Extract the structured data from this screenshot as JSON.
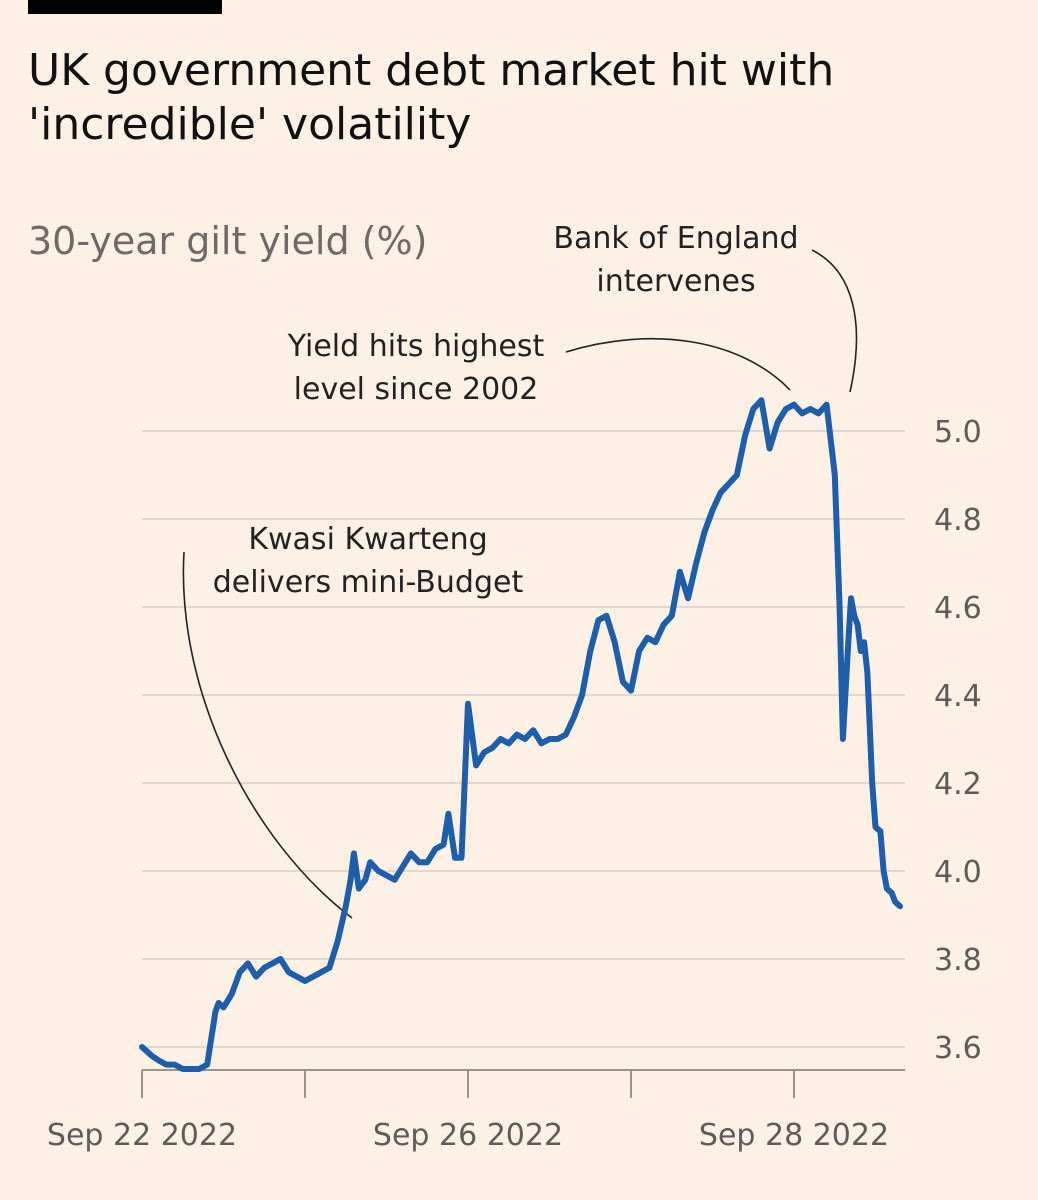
{
  "header": {
    "title_line1": "UK government debt market hit with",
    "title_line2": "'incredible' volatility"
  },
  "chart_data": {
    "type": "line",
    "title": "UK government debt market hit with 'incredible' volatility",
    "subtitle": "30-year gilt yield (%)",
    "xlabel": "",
    "ylabel": "30-year gilt yield (%)",
    "xlim": [
      0,
      4.7
    ],
    "ylim": [
      3.52,
      5.12
    ],
    "x_ticks": [
      0,
      1,
      2,
      3,
      4
    ],
    "x_tick_labels": [
      {
        "x": 0,
        "label": "Sep 22 2022"
      },
      {
        "x": 2,
        "label": "Sep 26 2022"
      },
      {
        "x": 4,
        "label": "Sep 28 2022"
      }
    ],
    "y_ticks": [
      3.6,
      3.8,
      4.0,
      4.2,
      4.4,
      4.6,
      4.8,
      5.0
    ],
    "y_tick_labels": [
      "3.6",
      "3.8",
      "4.0",
      "4.2",
      "4.4",
      "4.6",
      "4.8",
      "5.0"
    ],
    "colors": {
      "line": "#1f5ea8",
      "grid": "#e3d8cf",
      "annotation": "#222222"
    },
    "series": [
      {
        "name": "30-year gilt yield",
        "x": [
          0,
          0.03,
          0.06,
          0.1,
          0.15,
          0.2,
          0.25,
          0.3,
          0.35,
          0.4,
          0.45,
          0.47,
          0.5,
          0.55,
          0.6,
          0.65,
          0.7,
          0.75,
          0.8,
          0.85,
          0.9,
          0.95,
          1.0,
          1.05,
          1.1,
          1.15,
          1.2,
          1.25,
          1.28,
          1.3,
          1.33,
          1.37,
          1.4,
          1.45,
          1.5,
          1.55,
          1.6,
          1.65,
          1.7,
          1.75,
          1.8,
          1.85,
          1.88,
          1.92,
          1.96,
          2.0,
          2.05,
          2.1,
          2.15,
          2.2,
          2.25,
          2.3,
          2.35,
          2.4,
          2.45,
          2.5,
          2.55,
          2.6,
          2.65,
          2.7,
          2.75,
          2.8,
          2.85,
          2.9,
          2.95,
          3.0,
          3.05,
          3.1,
          3.15,
          3.2,
          3.25,
          3.3,
          3.35,
          3.4,
          3.45,
          3.5,
          3.55,
          3.6,
          3.65,
          3.7,
          3.75,
          3.8,
          3.85,
          3.9,
          3.95,
          4.0,
          4.05,
          4.1,
          4.15,
          4.2,
          4.25,
          4.28,
          4.3,
          4.33,
          4.35,
          4.37,
          4.39,
          4.41,
          4.43,
          4.45,
          4.48,
          4.5,
          4.53,
          4.55,
          4.57,
          4.6,
          4.62,
          4.65
        ],
        "values": [
          3.6,
          3.59,
          3.58,
          3.57,
          3.56,
          3.56,
          3.55,
          3.55,
          3.55,
          3.56,
          3.68,
          3.7,
          3.69,
          3.72,
          3.77,
          3.79,
          3.76,
          3.78,
          3.79,
          3.8,
          3.77,
          3.76,
          3.75,
          3.76,
          3.77,
          3.78,
          3.84,
          3.92,
          3.98,
          4.04,
          3.96,
          3.98,
          4.02,
          4.0,
          3.99,
          3.98,
          4.01,
          4.04,
          4.02,
          4.02,
          4.05,
          4.06,
          4.13,
          4.03,
          4.03,
          4.38,
          4.24,
          4.27,
          4.28,
          4.3,
          4.29,
          4.31,
          4.3,
          4.32,
          4.29,
          4.3,
          4.3,
          4.31,
          4.35,
          4.4,
          4.5,
          4.57,
          4.58,
          4.52,
          4.43,
          4.41,
          4.5,
          4.53,
          4.52,
          4.56,
          4.58,
          4.68,
          4.62,
          4.7,
          4.77,
          4.82,
          4.86,
          4.88,
          4.9,
          4.99,
          5.05,
          5.07,
          4.96,
          5.02,
          5.05,
          5.06,
          5.04,
          5.05,
          5.04,
          5.06,
          4.9,
          4.6,
          4.3,
          4.5,
          4.62,
          4.58,
          4.56,
          4.5,
          4.52,
          4.45,
          4.2,
          4.1,
          4.09,
          4.0,
          3.96,
          3.95,
          3.93,
          3.92
        ]
      }
    ],
    "annotations": [
      {
        "line1": "Kwasi Kwarteng",
        "line2": "delivers mini-Budget"
      },
      {
        "line1": "Yield hits highest",
        "line2": "level since 2002"
      },
      {
        "line1": "Bank of England",
        "line2": "intervenes"
      }
    ]
  }
}
